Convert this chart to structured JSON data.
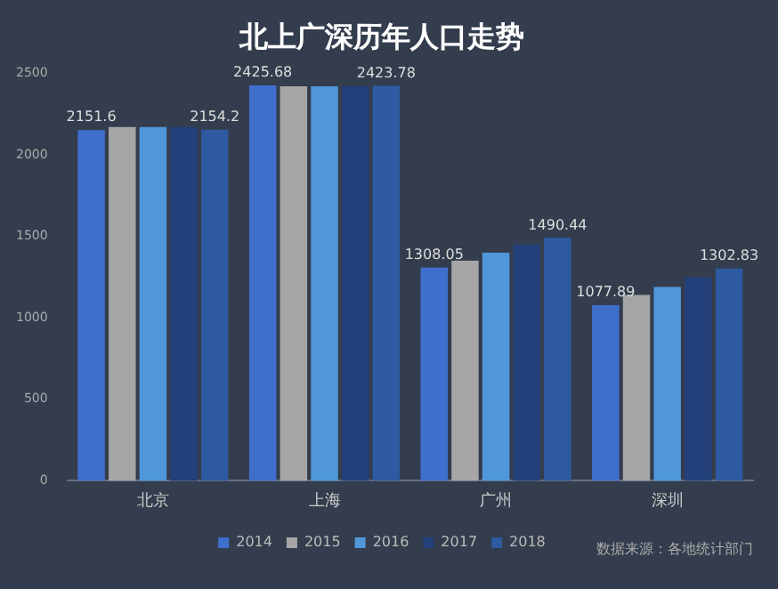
{
  "chart_data": {
    "type": "bar",
    "title": "北上广深历年人口走势",
    "categories": [
      "北京",
      "上海",
      "广州",
      "深圳"
    ],
    "series": [
      {
        "name": "2014",
        "color": "#3f6fcc",
        "values": [
          2151.6,
          2425.68,
          1308.05,
          1077.89
        ],
        "value_labels": [
          "2151.6",
          "2425.68",
          "1308.05",
          "1077.89"
        ]
      },
      {
        "name": "2015",
        "color": "#a6a6a6",
        "values": [
          2170,
          2420,
          1350,
          1140
        ]
      },
      {
        "name": "2016",
        "color": "#4f97d9",
        "values": [
          2170,
          2420,
          1400,
          1190
        ]
      },
      {
        "name": "2017",
        "color": "#23407a",
        "values": [
          2170,
          2420,
          1450,
          1250
        ]
      },
      {
        "name": "2018",
        "color": "#2d5aa0",
        "values": [
          2154.2,
          2423.78,
          1490.44,
          1302.83
        ],
        "value_labels": [
          "2154.2",
          "2423.78",
          "1490.44",
          "1302.83"
        ]
      }
    ],
    "ylim": [
      0,
      2500
    ],
    "yticks": [
      0,
      500,
      1000,
      1500,
      2000,
      2500
    ],
    "grid": false,
    "legend": "bottom",
    "annotations": [
      "数据来源：各地统计部门"
    ]
  }
}
